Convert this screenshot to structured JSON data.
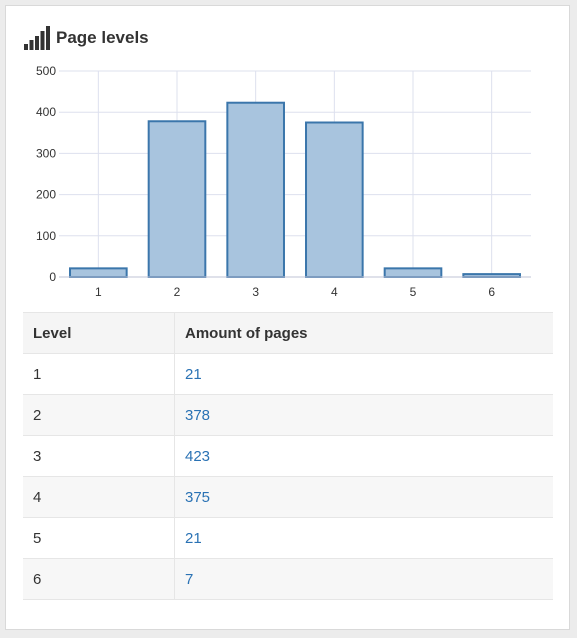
{
  "panel": {
    "title": "Page levels",
    "icon": "signal-bars-icon"
  },
  "colors": {
    "bar_fill": "#a8c4de",
    "bar_stroke": "#3b76ab",
    "grid": "#dde0ee",
    "link": "#2a72b4"
  },
  "chart_data": {
    "type": "bar",
    "categories": [
      "1",
      "2",
      "3",
      "4",
      "5",
      "6"
    ],
    "values": [
      21,
      378,
      423,
      375,
      21,
      7
    ],
    "xlabel": "",
    "ylabel": "",
    "ylim": [
      0,
      500
    ],
    "yticks": [
      0,
      100,
      200,
      300,
      400,
      500
    ],
    "grid": true,
    "legend": "none"
  },
  "table": {
    "headers": [
      "Level",
      "Amount of pages"
    ],
    "rows": [
      {
        "level": "1",
        "amount": "21"
      },
      {
        "level": "2",
        "amount": "378"
      },
      {
        "level": "3",
        "amount": "423"
      },
      {
        "level": "4",
        "amount": "375"
      },
      {
        "level": "5",
        "amount": "21"
      },
      {
        "level": "6",
        "amount": "7"
      }
    ]
  }
}
